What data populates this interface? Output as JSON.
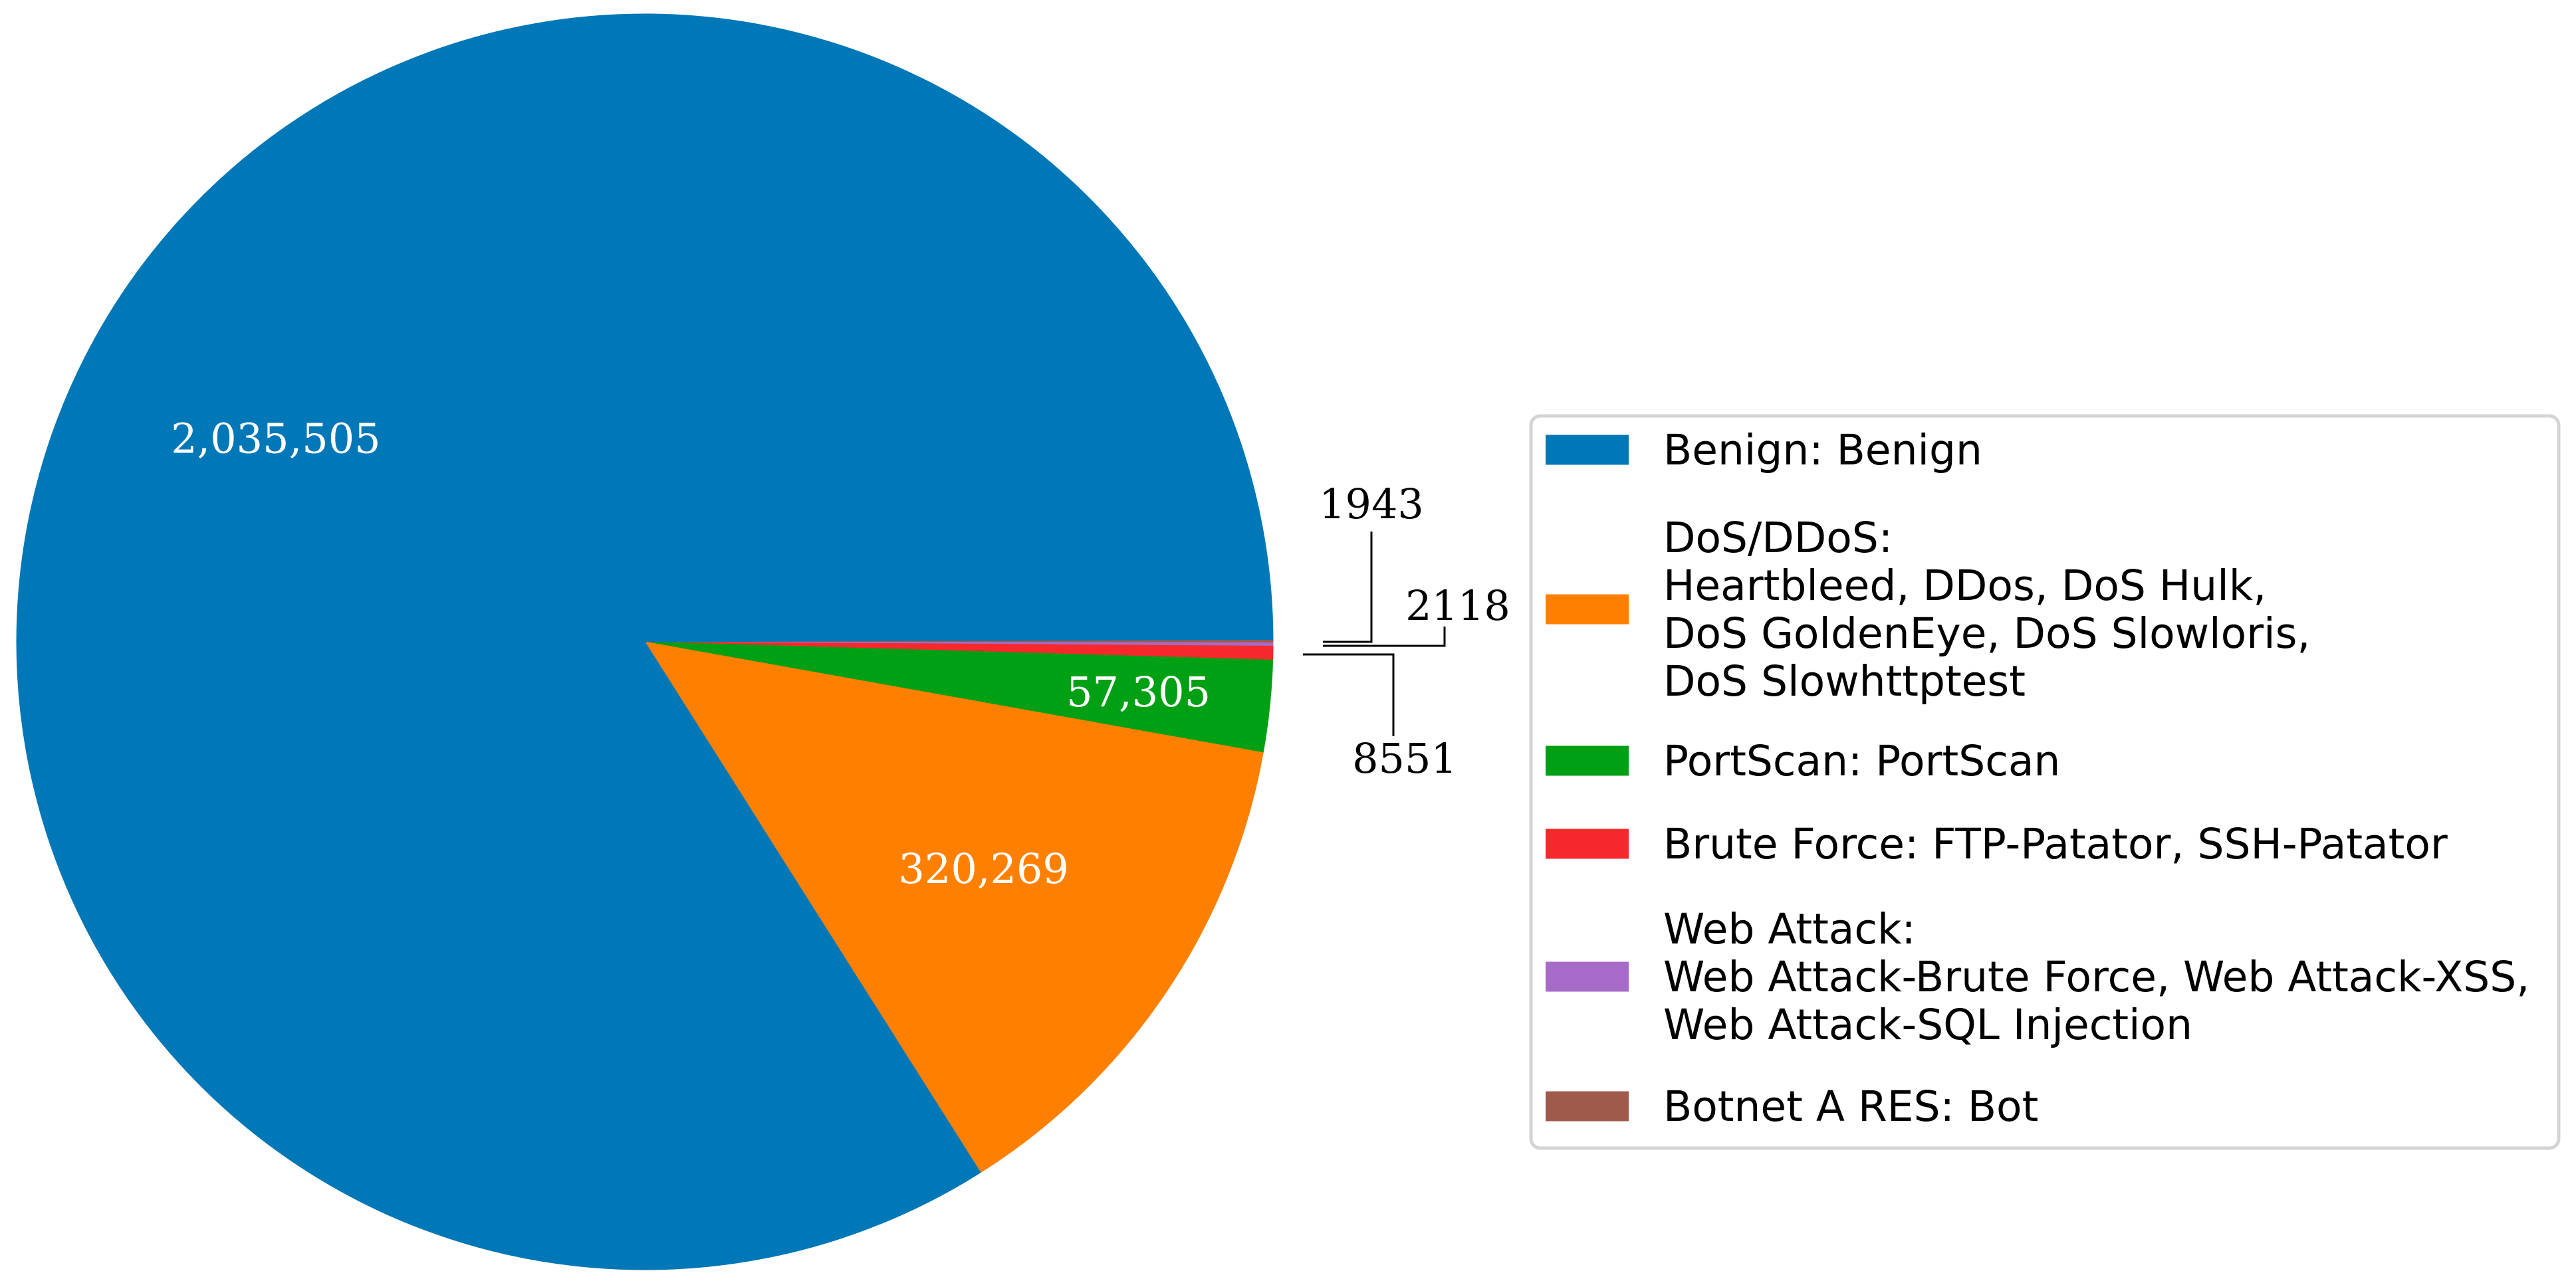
{
  "chart_data": {
    "type": "pie",
    "slices": [
      {
        "key": "benign",
        "value": 2035505,
        "label": "2,035,505",
        "color": "#0077b6"
      },
      {
        "key": "dos",
        "value": 320269,
        "label": "320,269",
        "color": "#ff8000"
      },
      {
        "key": "portscan",
        "value": 57305,
        "label": "57,305",
        "color": "#00a014"
      },
      {
        "key": "bruteforce",
        "value": 8551,
        "label": "8551",
        "color": "#f5292b"
      },
      {
        "key": "webattack",
        "value": 2118,
        "label": "2118",
        "color": "#a66bc8"
      },
      {
        "key": "botnet",
        "value": 1943,
        "label": "1943",
        "color": "#a05a4b"
      }
    ],
    "legend": {
      "placement": "right",
      "entries": [
        {
          "key": "benign",
          "lines": [
            "Benign: Benign"
          ]
        },
        {
          "key": "dos",
          "lines": [
            "DoS/DDoS:",
            "Heartbleed, DDos, DoS Hulk,",
            "DoS GoldenEye, DoS Slowloris,",
            "DoS Slowhttptest"
          ]
        },
        {
          "key": "portscan",
          "lines": [
            "PortScan: PortScan"
          ]
        },
        {
          "key": "bruteforce",
          "lines": [
            "Brute Force: FTP-Patator, SSH-Patator"
          ]
        },
        {
          "key": "webattack",
          "lines": [
            "Web Attack:",
            "Web Attack-Brute Force, Web Attack-XSS,",
            "Web Attack-SQL Injection"
          ]
        },
        {
          "key": "botnet",
          "lines": [
            "Botnet A RES: Bot"
          ]
        }
      ]
    }
  }
}
